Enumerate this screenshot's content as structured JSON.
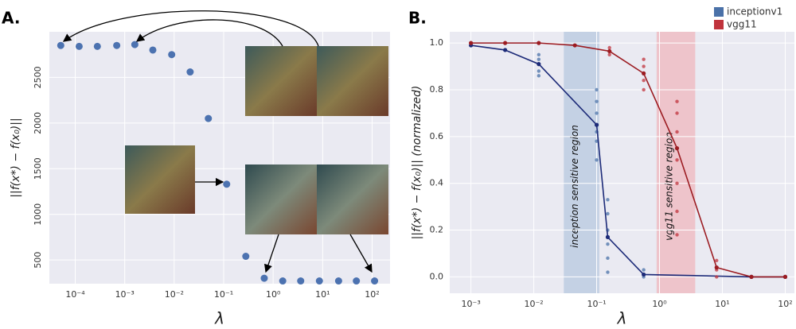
{
  "chart_data": [
    {
      "type": "scatter",
      "panel_label": "A.",
      "ylabel": "||f(x*) − f(x₀)||",
      "xlabel": "λ",
      "x": [
        5.1e-05,
        0.00012,
        0.00028,
        0.00069,
        0.0016,
        0.0037,
        0.0089,
        0.021,
        0.049,
        0.115,
        0.28,
        0.66,
        1.56,
        3.6,
        8.6,
        21,
        48,
        112
      ],
      "values": [
        2850,
        2840,
        2840,
        2850,
        2860,
        2800,
        2750,
        2560,
        2050,
        1330,
        540,
        300,
        270,
        270,
        270,
        270,
        270,
        270
      ],
      "color": "#4c72b0",
      "xlog": true,
      "xlim": [
        3e-05,
        230
      ],
      "ylim": [
        240,
        3000
      ],
      "xticks": [
        {
          "value": 0.0001,
          "label": "10⁻⁴"
        },
        {
          "value": 0.001,
          "label": "10⁻³"
        },
        {
          "value": 0.01,
          "label": "10⁻²"
        },
        {
          "value": 0.1,
          "label": "10⁻¹"
        },
        {
          "value": 1,
          "label": "10⁰"
        },
        {
          "value": 10,
          "label": "10¹"
        },
        {
          "value": 100,
          "label": "10²"
        }
      ],
      "yticks": [
        500,
        1000,
        1500,
        2000,
        2500
      ],
      "grid": true
    },
    {
      "type": "line",
      "panel_label": "B.",
      "ylabel": "||f(x*) − f(x₀)|| (normalized)",
      "xlabel": "λ",
      "xlog": true,
      "xlim": [
        0.00046,
        140
      ],
      "ylim": [
        -0.07,
        1.048
      ],
      "grid": true,
      "legend": "upper right",
      "xticks": [
        {
          "value": 0.001,
          "label": "10⁻³"
        },
        {
          "value": 0.01,
          "label": "10⁻²"
        },
        {
          "value": 0.1,
          "label": "10⁻¹"
        },
        {
          "value": 1,
          "label": "10⁰"
        },
        {
          "value": 10,
          "label": "10¹"
        },
        {
          "value": 100,
          "label": "10²"
        }
      ],
      "yticks": [
        {
          "value": 0,
          "label": "0.0"
        },
        0.2,
        0.4,
        0.6,
        0.8,
        {
          "value": 1,
          "label": "1.0"
        }
      ],
      "regions": [
        {
          "label": "inception sensitive region",
          "x": [
            0.03,
            0.11
          ],
          "color": "#b3c6de"
        },
        {
          "label": "vgg11 sensitive region",
          "x": [
            0.9,
            3.7
          ],
          "color": "#f0b3bb"
        }
      ],
      "series": [
        {
          "name": "inceptionv1",
          "color": "#4a71a8",
          "line_color": "#1c2a78",
          "x": [
            0.001,
            0.0035,
            0.012,
            0.1,
            0.15,
            0.56,
            29,
            100
          ],
          "values": [
            0.99,
            0.97,
            0.91,
            0.65,
            0.17,
            0.01,
            0,
            0
          ],
          "points": {
            "x": [
              0.012,
              0.012,
              0.012,
              0.012,
              0.1,
              0.1,
              0.1,
              0.1,
              0.1,
              0.1,
              0.15,
              0.15,
              0.15,
              0.15,
              0.15,
              0.15,
              0.56,
              0.56
            ],
            "y": [
              0.86,
              0.88,
              0.93,
              0.95,
              0.5,
              0.58,
              0.62,
              0.7,
              0.75,
              0.8,
              0.02,
              0.08,
              0.14,
              0.2,
              0.27,
              0.33,
              0,
              0.03
            ]
          }
        },
        {
          "name": "vgg11",
          "color": "#c0333c",
          "line_color": "#9c1c22",
          "x": [
            0.001,
            0.0035,
            0.012,
            0.045,
            0.16,
            0.56,
            1.9,
            8.1,
            29,
            100
          ],
          "values": [
            1,
            1,
            1,
            0.99,
            0.965,
            0.87,
            0.55,
            0.04,
            0,
            0
          ],
          "points": {
            "x": [
              0.16,
              0.16,
              0.56,
              0.56,
              0.56,
              0.56,
              1.9,
              1.9,
              1.9,
              1.9,
              1.9,
              1.9,
              1.9,
              8.1,
              8.1,
              8.1
            ],
            "y": [
              0.95,
              0.98,
              0.8,
              0.84,
              0.9,
              0.93,
              0.18,
              0.28,
              0.4,
              0.5,
              0.62,
              0.7,
              0.75,
              0,
              0.03,
              0.07
            ]
          }
        }
      ]
    }
  ]
}
